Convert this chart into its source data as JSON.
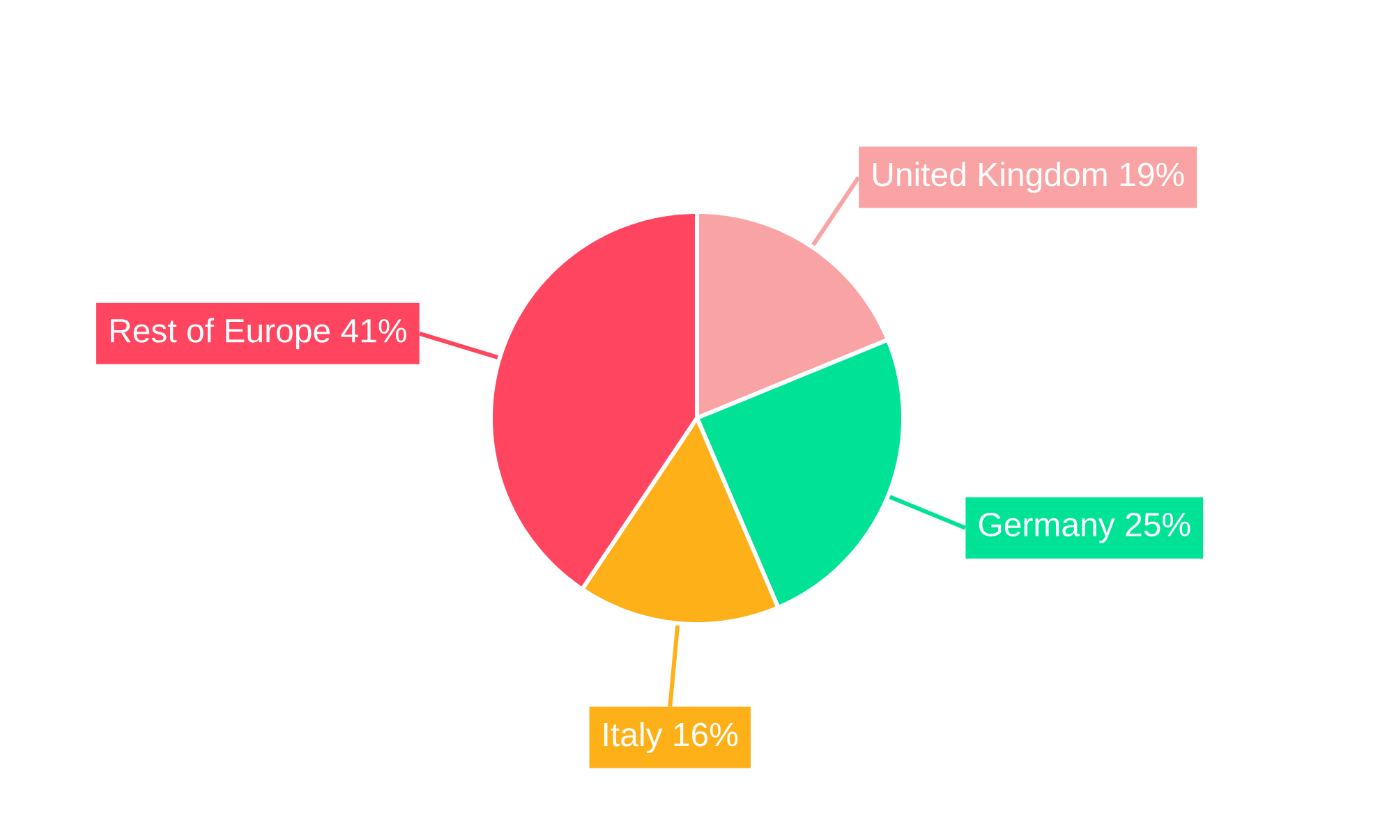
{
  "chart_data": {
    "type": "pie",
    "categories": [
      "United Kingdom",
      "Germany",
      "Italy",
      "Rest of Europe"
    ],
    "values": [
      19,
      25,
      16,
      41
    ],
    "value_labels": [
      "19%",
      "25%",
      "16%",
      "41%"
    ],
    "colors": [
      "#f9a3a4",
      "#00e396",
      "#feb019",
      "#ff4560"
    ]
  }
}
